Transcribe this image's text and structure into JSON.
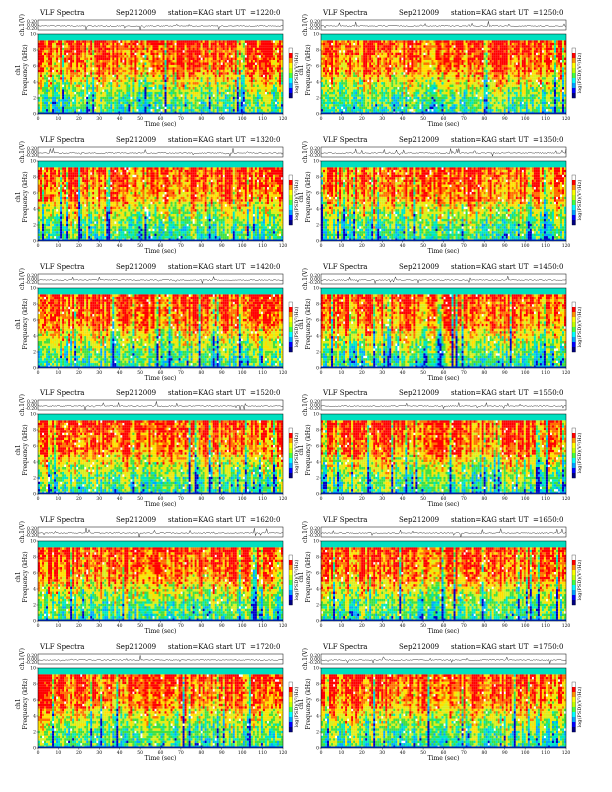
{
  "header": {
    "title": "VLF Spectra",
    "date": "Sep212009",
    "station": "station=KAG",
    "start_prefix": "start  UT"
  },
  "axes": {
    "xlabel": "Time  (sec)",
    "ylabel_freq": "Frequency  (kHz)",
    "ylabel_ch": "ch1",
    "ylabel_wave": "ch.1(V)",
    "colorbar_label": "log(PSD)(V²/Hz)"
  },
  "colors": {
    "spectrogram": [
      "#0000c8",
      "#00a8ff",
      "#00e8c0",
      "#40e040",
      "#d8f020",
      "#ffe000",
      "#ff7000",
      "#ff0000"
    ],
    "colorbar": [
      "#000080",
      "#0000ff",
      "#00a0ff",
      "#00ffff",
      "#40ff40",
      "#c0ff00",
      "#ffff00",
      "#ff9000",
      "#ff0000",
      "#ffffff"
    ]
  },
  "chart_data": [
    {
      "type": "heatmap",
      "start_ut": "1220:0",
      "x_ticks": [
        0,
        10,
        20,
        30,
        40,
        50,
        60,
        70,
        80,
        90,
        100,
        110,
        120
      ],
      "y_ticks": [
        0,
        2,
        4,
        6,
        8,
        10
      ],
      "wave_ticks": [
        "0.20",
        "0.00",
        "-0.20"
      ],
      "xlim": [
        0,
        120
      ],
      "ylim": [
        0,
        10
      ],
      "wave_ylim": [
        -0.2,
        0.2
      ]
    },
    {
      "type": "heatmap",
      "start_ut": "1250:0",
      "x_ticks": [
        0,
        10,
        20,
        30,
        40,
        50,
        60,
        70,
        80,
        90,
        100,
        110,
        120
      ],
      "y_ticks": [
        0,
        2,
        4,
        6,
        8,
        10
      ],
      "wave_ticks": [
        "0.20",
        "0.00",
        "-0.20"
      ],
      "xlim": [
        0,
        120
      ],
      "ylim": [
        0,
        10
      ],
      "wave_ylim": [
        -0.2,
        0.2
      ]
    },
    {
      "type": "heatmap",
      "start_ut": "1320:0",
      "x_ticks": [
        0,
        10,
        20,
        30,
        40,
        50,
        60,
        70,
        80,
        90,
        100,
        110,
        120
      ],
      "y_ticks": [
        0,
        2,
        4,
        6,
        8,
        10
      ],
      "wave_ticks": [
        "0.20",
        "0.00",
        "-0.20"
      ],
      "xlim": [
        0,
        120
      ],
      "ylim": [
        0,
        10
      ],
      "wave_ylim": [
        -0.2,
        0.2
      ]
    },
    {
      "type": "heatmap",
      "start_ut": "1350:0",
      "x_ticks": [
        0,
        10,
        20,
        30,
        40,
        50,
        60,
        70,
        80,
        90,
        100,
        110,
        120
      ],
      "y_ticks": [
        0,
        2,
        4,
        6,
        8,
        10
      ],
      "wave_ticks": [
        "0.20",
        "0.00",
        "-0.20"
      ],
      "xlim": [
        0,
        120
      ],
      "ylim": [
        0,
        10
      ],
      "wave_ylim": [
        -0.2,
        0.2
      ]
    },
    {
      "type": "heatmap",
      "start_ut": "1420:0",
      "x_ticks": [
        0,
        10,
        20,
        30,
        40,
        50,
        60,
        70,
        80,
        90,
        100,
        110,
        120
      ],
      "y_ticks": [
        0,
        2,
        4,
        6,
        8,
        10
      ],
      "wave_ticks": [
        "0.20",
        "0.00",
        "-0.20"
      ],
      "xlim": [
        0,
        120
      ],
      "ylim": [
        0,
        10
      ],
      "wave_ylim": [
        -0.2,
        0.2
      ]
    },
    {
      "type": "heatmap",
      "start_ut": "1450:0",
      "x_ticks": [
        0,
        10,
        20,
        30,
        40,
        50,
        60,
        70,
        80,
        90,
        100,
        110,
        120
      ],
      "y_ticks": [
        0,
        2,
        4,
        6,
        8,
        10
      ],
      "wave_ticks": [
        "0.20",
        "0.00",
        "-0.20"
      ],
      "xlim": [
        0,
        120
      ],
      "ylim": [
        0,
        10
      ],
      "wave_ylim": [
        -0.2,
        0.2
      ]
    },
    {
      "type": "heatmap",
      "start_ut": "1520:0",
      "x_ticks": [
        0,
        10,
        20,
        30,
        40,
        50,
        60,
        70,
        80,
        90,
        100,
        110,
        120
      ],
      "y_ticks": [
        0,
        2,
        4,
        6,
        8,
        10
      ],
      "wave_ticks": [
        "0.20",
        "0.00",
        "-0.20"
      ],
      "xlim": [
        0,
        120
      ],
      "ylim": [
        0,
        10
      ],
      "wave_ylim": [
        -0.2,
        0.2
      ]
    },
    {
      "type": "heatmap",
      "start_ut": "1550:0",
      "x_ticks": [
        0,
        10,
        20,
        30,
        40,
        50,
        60,
        70,
        80,
        90,
        100,
        110,
        120
      ],
      "y_ticks": [
        0,
        2,
        4,
        6,
        8,
        10
      ],
      "wave_ticks": [
        "0.20",
        "0.00",
        "-0.20"
      ],
      "xlim": [
        0,
        120
      ],
      "ylim": [
        0,
        10
      ],
      "wave_ylim": [
        -0.2,
        0.2
      ]
    },
    {
      "type": "heatmap",
      "start_ut": "1620:0",
      "x_ticks": [
        0,
        10,
        20,
        30,
        40,
        50,
        60,
        70,
        80,
        90,
        100,
        110,
        120
      ],
      "y_ticks": [
        0,
        2,
        4,
        6,
        8,
        10
      ],
      "wave_ticks": [
        "0.20",
        "0.00",
        "-0.20"
      ],
      "xlim": [
        0,
        120
      ],
      "ylim": [
        0,
        10
      ],
      "wave_ylim": [
        -0.2,
        0.2
      ]
    },
    {
      "type": "heatmap",
      "start_ut": "1650:0",
      "x_ticks": [
        0,
        10,
        20,
        30,
        40,
        50,
        60,
        70,
        80,
        90,
        100,
        110,
        120
      ],
      "y_ticks": [
        0,
        2,
        4,
        6,
        8,
        10
      ],
      "wave_ticks": [
        "0.20",
        "0.00",
        "-0.20"
      ],
      "xlim": [
        0,
        120
      ],
      "ylim": [
        0,
        10
      ],
      "wave_ylim": [
        -0.2,
        0.2
      ]
    },
    {
      "type": "heatmap",
      "start_ut": "1720:0",
      "x_ticks": [
        0,
        10,
        20,
        30,
        40,
        50,
        60,
        70,
        80,
        90,
        100,
        110,
        120
      ],
      "y_ticks": [
        0,
        2,
        4,
        6,
        8,
        10
      ],
      "wave_ticks": [
        "0.20",
        "0.00",
        "-0.20"
      ],
      "xlim": [
        0,
        120
      ],
      "ylim": [
        0,
        10
      ],
      "wave_ylim": [
        -0.2,
        0.2
      ]
    },
    {
      "type": "heatmap",
      "start_ut": "1750:0",
      "x_ticks": [
        0,
        10,
        20,
        30,
        40,
        50,
        60,
        70,
        80,
        90,
        100,
        110,
        120
      ],
      "y_ticks": [
        0,
        2,
        4,
        6,
        8,
        10
      ],
      "wave_ticks": [
        "0.20",
        "0.00",
        "-0.20"
      ],
      "xlim": [
        0,
        120
      ],
      "ylim": [
        0,
        10
      ],
      "wave_ylim": [
        -0.2,
        0.2
      ]
    }
  ]
}
